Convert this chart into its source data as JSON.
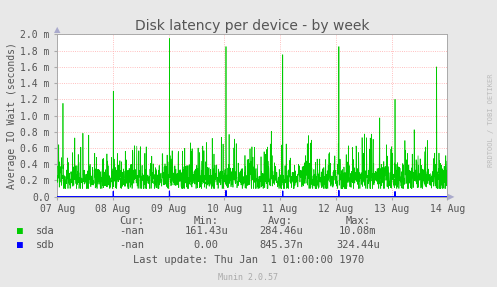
{
  "title": "Disk latency per device - by week",
  "ylabel": "Average IO Wait (seconds)",
  "bg_color": "#e8e8e8",
  "plot_bg_color": "#ffffff",
  "grid_color": "#ffaaaa",
  "border_color": "#aaaaaa",
  "ylim": [
    0.0,
    0.002
  ],
  "yticks": [
    0.0,
    0.0002,
    0.0004,
    0.0006,
    0.0008,
    0.001,
    0.0012,
    0.0014,
    0.0016,
    0.0018,
    0.002
  ],
  "ytick_labels": [
    "0.0",
    "0.2 m",
    "0.4 m",
    "0.6 m",
    "0.8 m",
    "1.0 m",
    "1.2 m",
    "1.4 m",
    "1.6 m",
    "1.8 m",
    "2.0 m"
  ],
  "xtick_labels": [
    "07 Aug",
    "08 Aug",
    "09 Aug",
    "10 Aug",
    "11 Aug",
    "12 Aug",
    "13 Aug",
    "14 Aug"
  ],
  "sda_color": "#00cc00",
  "sdb_color": "#0000ff",
  "table_headers": [
    "Cur:",
    "Min:",
    "Avg:",
    "Max:"
  ],
  "table_sda": [
    "-nan",
    "161.43u",
    "284.46u",
    "10.08m"
  ],
  "table_sdb": [
    "-nan",
    "0.00",
    "845.37n",
    "324.44u"
  ],
  "last_update": "Last update: Thu Jan  1 01:00:00 1970",
  "munin_version": "Munin 2.0.57",
  "rrdtool_text": "RRDTOOL / TOBI OETIKER",
  "text_color": "#555555",
  "arrow_color": "#aaaacc",
  "title_fontsize": 10,
  "tick_fontsize": 7,
  "label_fontsize": 7,
  "legend_fontsize": 7.5
}
